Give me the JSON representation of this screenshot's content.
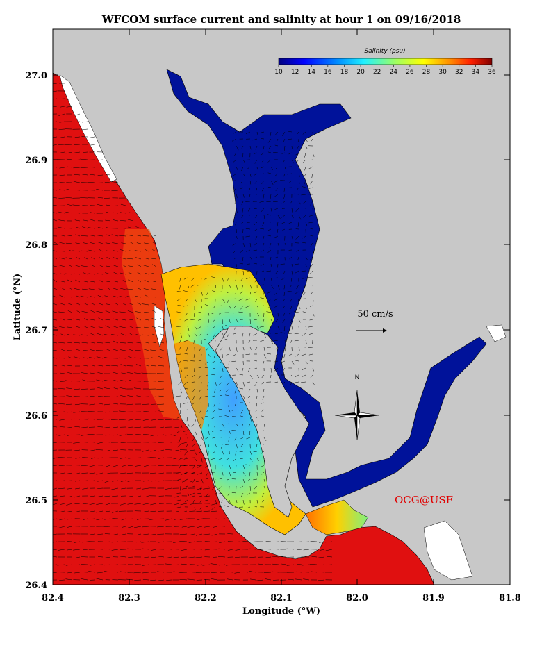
{
  "title": "WFCOM surface current and salinity at hour 1 on 09/16/2018",
  "x_axis": {
    "label": "Longitude (°W)",
    "ticks": [
      "82.4",
      "82.3",
      "82.2",
      "82.1",
      "82.0",
      "81.9",
      "81.8"
    ]
  },
  "y_axis": {
    "label": "Latitude (°N)",
    "ticks": [
      "27.0",
      "26.9",
      "26.8",
      "26.7",
      "26.6",
      "26.5",
      "26.4"
    ]
  },
  "colorbar": {
    "title": "Salinity (psu)",
    "ticks": [
      "10",
      "12",
      "14",
      "16",
      "18",
      "20",
      "22",
      "24",
      "26",
      "28",
      "30",
      "32",
      "34",
      "36"
    ],
    "min": 10,
    "max": 36
  },
  "velocity_scale": {
    "label": "50 cm/s",
    "value": 50
  },
  "compass": {
    "north_label": "N"
  },
  "credit": {
    "text": "OCG@USF",
    "color": "#e00000"
  },
  "colors": {
    "land": "#c8c8c8",
    "high_salinity": "#e01010",
    "low_salinity": "#00129a"
  }
}
